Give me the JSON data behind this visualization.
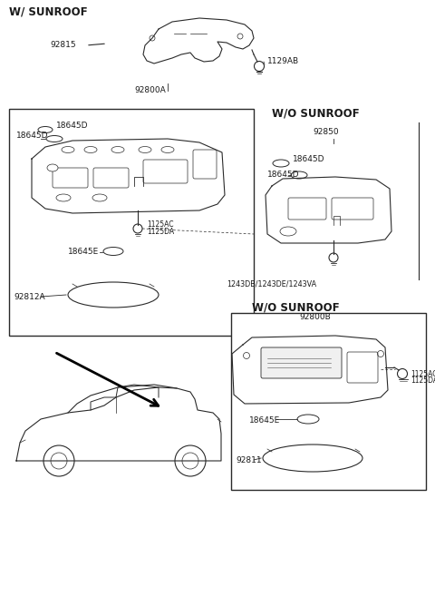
{
  "bg_color": "#ffffff",
  "fig_width": 4.8,
  "fig_height": 6.57,
  "dpi": 100,
  "labels": {
    "w_sunroof": "W/ SUNROOF",
    "wo_sunroof_top": "W/O SUNROOF",
    "wo_sunroof_bot": "W/O SUNROOF",
    "92815": "92815",
    "92800A": "92800A",
    "1129AB": "1129AB",
    "18645D": "18645D",
    "18645E": "18645E",
    "92812A": "92812A",
    "92850": "92850",
    "1125AC": "1125AC",
    "1125DA": "1125DA",
    "1243": "1243DB/1243DE/1243VA",
    "92800B": "92800B",
    "92811": "92811"
  },
  "line_color": "#2a2a2a",
  "text_color": "#1a1a1a"
}
